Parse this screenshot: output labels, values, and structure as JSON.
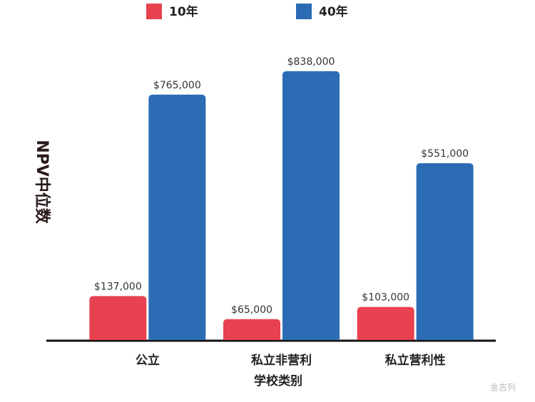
{
  "chart_data": {
    "type": "bar",
    "categories": [
      "公立",
      "私立非营利",
      "私立营利性"
    ],
    "series": [
      {
        "name": "10年",
        "color": "#e8414f",
        "values": [
          137000,
          65000,
          103000
        ],
        "value_labels": [
          "$137,000",
          "$65,000",
          "$103,000"
        ]
      },
      {
        "name": "40年",
        "color": "#2b6cb4",
        "values": [
          765000,
          838000,
          551000
        ],
        "value_labels": [
          "$765,000",
          "$838,000",
          "$551,000"
        ]
      }
    ],
    "ylim": [
      0,
      1000000
    ],
    "y_label": "NPV中位数",
    "x_label": "学校类别",
    "watermark": "金吉列"
  }
}
